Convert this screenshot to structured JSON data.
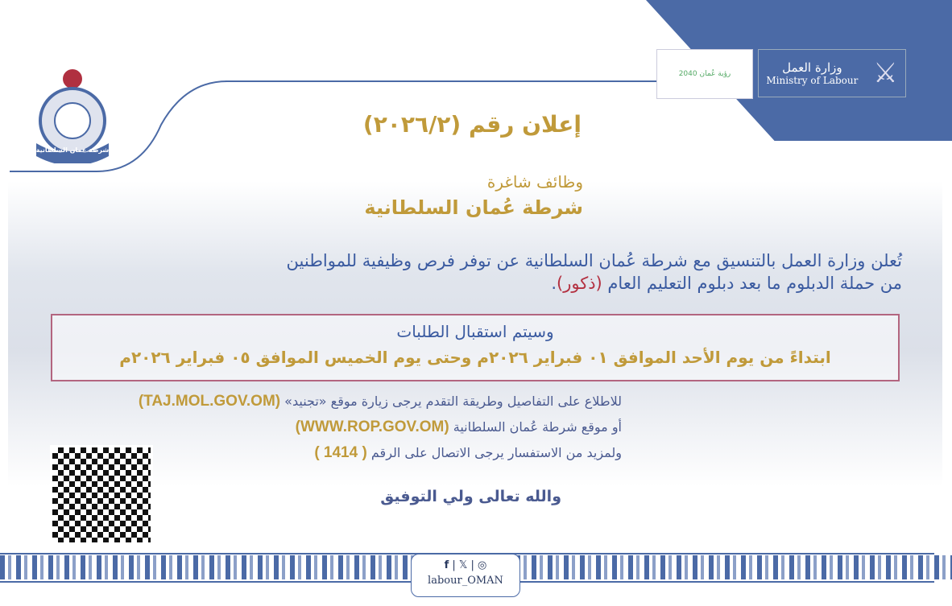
{
  "header": {
    "ministry_ar": "وزارة العمل",
    "ministry_en": "Ministry of Labour",
    "vision_logo_text": "رؤية عُمان 2040"
  },
  "police_logo_text": "شرطة عمان السلطانية",
  "announcement": {
    "title": "إعلان رقم (٢٠٢٦/٢)",
    "subtitle": "وظائف شاغرة",
    "organization": "شرطة عُمان السلطانية",
    "para_line1": "تُعلن وزارة العمل بالتنسيق مع شرطة عُمان السلطانية عن توفر فرص وظيفية للمواطنين",
    "para_line2_a": "من حملة الدبلوم ما بعد دبلوم التعليم العام ",
    "para_line2_b": "(ذكور)",
    "para_line2_c": ".",
    "box_line1": "وسيتم استقبال الطلبات",
    "box_line2": "ابتداءً من يوم الأحد الموافق ٠١ فبراير ٢٠٢٦م وحتى يوم الخميس الموافق ٠٥ فبراير ٢٠٢٦م",
    "info1_text": "للاطلاع على التفاصيل وطريقة التقدم يرجى زيارة موقع «تجنيد» ",
    "info1_link": "(TAJ.MOL.GOV.OM)",
    "info2_text": "أو موقع شرطة عُمان السلطانية ",
    "info2_link": "(WWW.ROP.GOV.OM)",
    "info3_text": "ولمزيد من الاستفسار يرجى الاتصال على الرقم ",
    "info3_number": "( 1414 )",
    "closing": "والله تعالى ولي التوفيق"
  },
  "footer": {
    "social_icons": [
      "facebook-icon",
      "x-icon",
      "instagram-icon"
    ],
    "handle": "labour_OMAN"
  },
  "colors": {
    "brand_blue": "#4b6aa6",
    "gold": "#c09a3a",
    "text_blue": "#3a5aa0",
    "accent_red": "#b33040",
    "box_border": "#b3657f"
  }
}
